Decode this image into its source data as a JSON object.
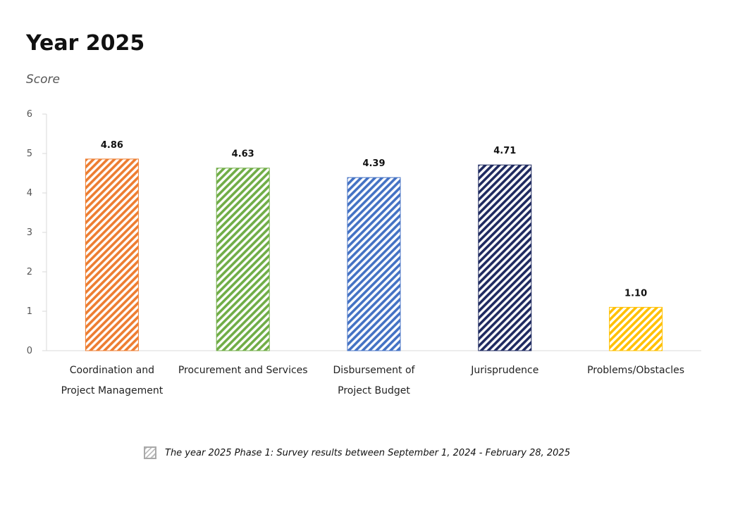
{
  "chart_data": {
    "type": "bar",
    "title": "Year 2025",
    "ylabel": "Score",
    "xlabel": "",
    "ylim": [
      0,
      6
    ],
    "yticks": [
      0,
      1,
      2,
      3,
      4,
      5,
      6
    ],
    "categories": [
      [
        "Coordination and",
        "Project Management"
      ],
      [
        "Procurement and Services"
      ],
      [
        "Disbursement of",
        "Project Budget"
      ],
      [
        "Jurisprudence"
      ],
      [
        "Problems/Obstacles"
      ]
    ],
    "values": [
      4.86,
      4.63,
      4.39,
      4.71,
      1.1
    ],
    "value_labels": [
      "4.86",
      "4.63",
      "4.39",
      "4.71",
      "1.10"
    ],
    "colors": [
      "#ED7D31",
      "#70AD47",
      "#4472C4",
      "#1F2A60",
      "#FFC000"
    ],
    "pattern": "diagonal-hatch",
    "grid": false,
    "legend": {
      "placement": "bottom",
      "entries": [
        "The year 2025 Phase 1: Survey results between September 1, 2024 - February 28, 2025"
      ]
    }
  }
}
